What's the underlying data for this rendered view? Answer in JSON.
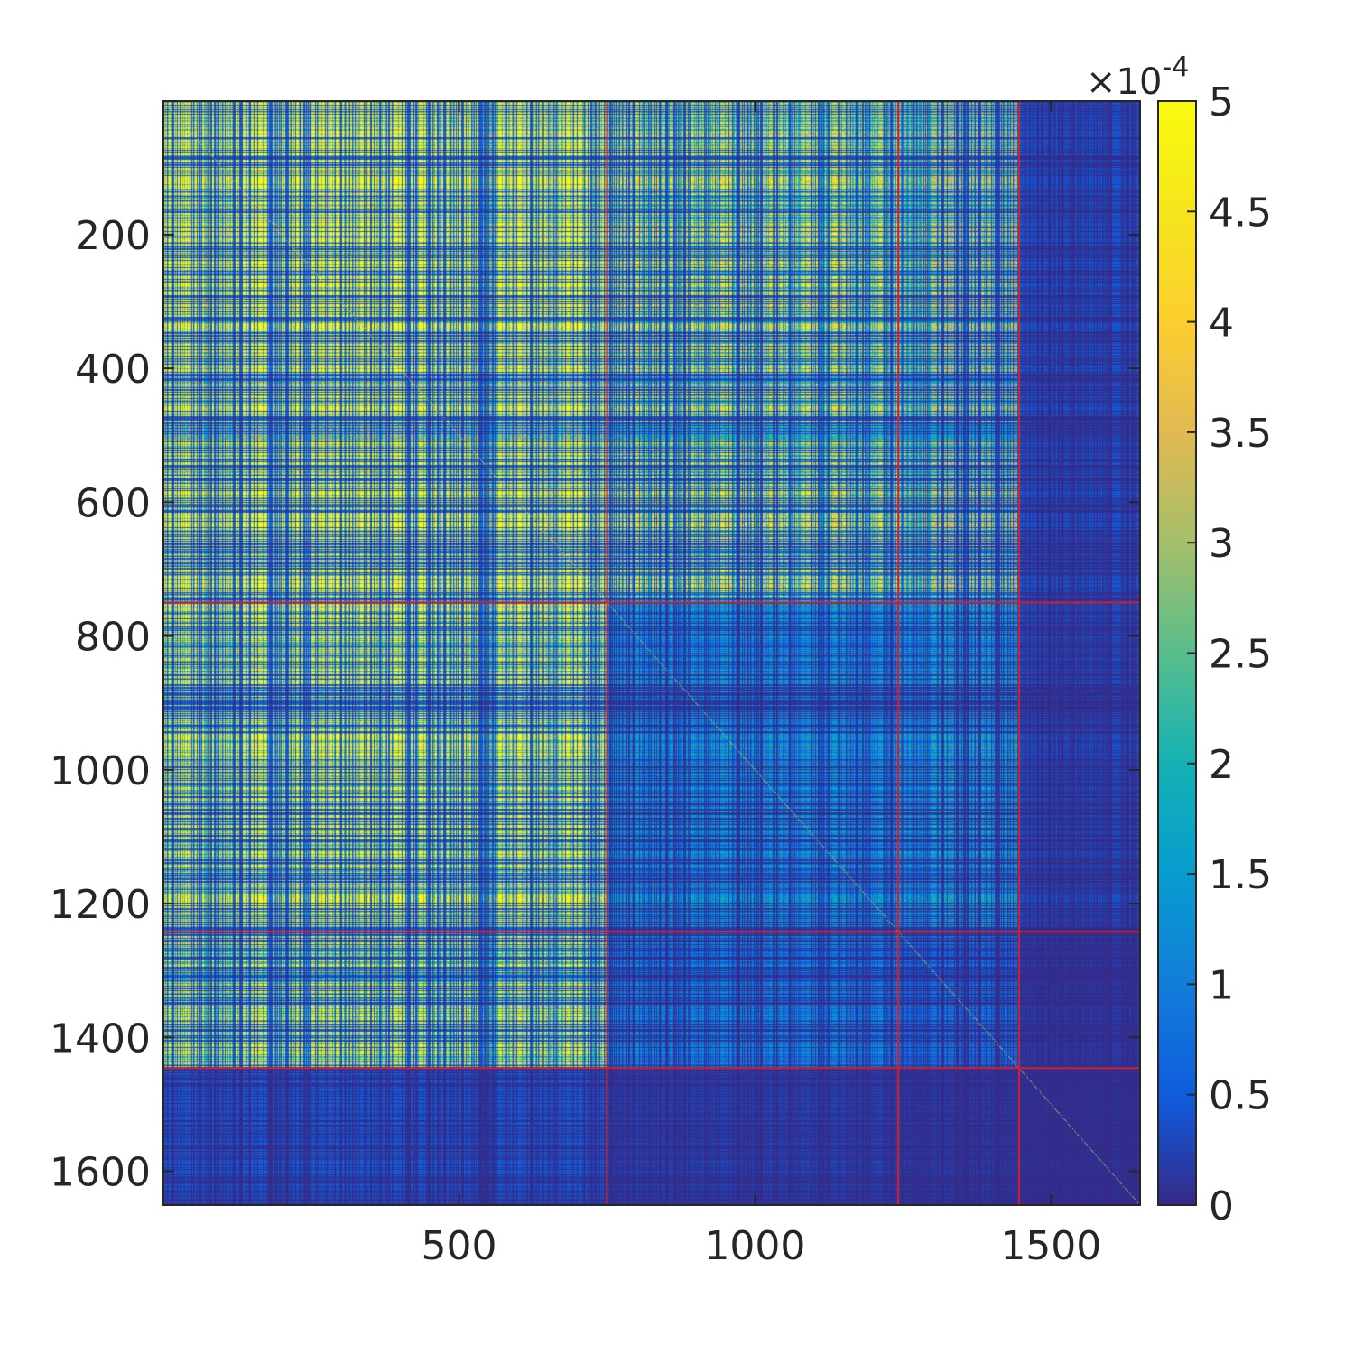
{
  "chart_data": {
    "type": "heatmap",
    "title": "",
    "xlabel": "",
    "ylabel": "",
    "xlim": [
      1,
      1650
    ],
    "ylim": [
      1,
      1650
    ],
    "y_reversed": true,
    "x_ticks": [
      500,
      1000,
      1500
    ],
    "x_tick_labels": [
      "500",
      "1000",
      "1500"
    ],
    "y_ticks": [
      200,
      400,
      600,
      800,
      1000,
      1200,
      1400,
      1600
    ],
    "y_tick_labels": [
      "200",
      "400",
      "600",
      "800",
      "1000",
      "1200",
      "1400",
      "1600"
    ],
    "colorbar": {
      "colormap": "parula",
      "range": [
        0,
        5
      ],
      "ticks": [
        0,
        0.5,
        1,
        1.5,
        2,
        2.5,
        3,
        3.5,
        4,
        4.5,
        5
      ],
      "tick_labels": [
        "0",
        "0.5",
        "1",
        "1.5",
        "2",
        "2.5",
        "3",
        "3.5",
        "4",
        "4.5",
        "5"
      ],
      "exponent_label": "×10",
      "exponent_power": "-4"
    },
    "block_boundaries": [
      750,
      1242,
      1446
    ],
    "block_line_color": "#d0202e",
    "block_mean_levels": [
      [
        3.2,
        2.3,
        1.9,
        0.25
      ],
      [
        2.9,
        0.9,
        1.0,
        0.2
      ],
      [
        2.6,
        0.7,
        0.5,
        0.1
      ],
      [
        0.3,
        0.15,
        0.1,
        0.05
      ]
    ],
    "grid": false,
    "legend": "none"
  }
}
